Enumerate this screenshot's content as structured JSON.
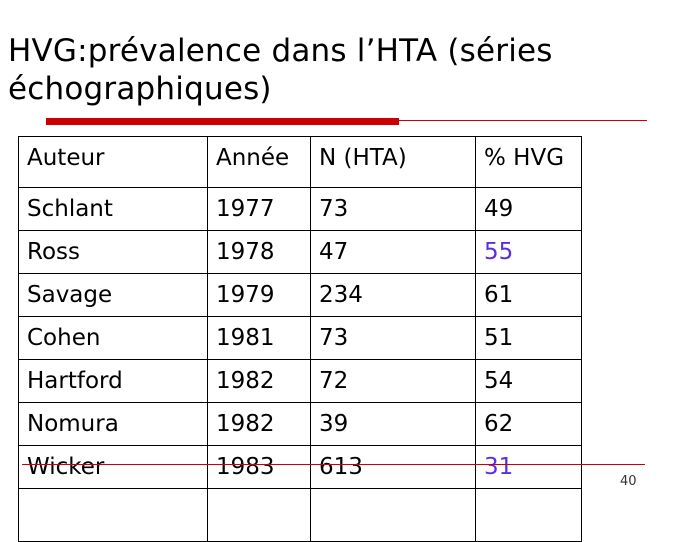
{
  "slide": {
    "title_line1": "HVG:prévalence dans l’HTA (séries",
    "title_line2": "échographiques)",
    "page_number": "40",
    "accent_color": "#cc0000",
    "highlight_color": "#5a2ee0"
  },
  "table": {
    "headers": {
      "author": "Auteur",
      "year": "Année",
      "n": "N (HTA)",
      "pct": "% HVG"
    },
    "rows": [
      {
        "author": "Schlant",
        "year": "1977",
        "n": "73",
        "pct": "49",
        "highlight": false
      },
      {
        "author": "Ross",
        "year": "1978",
        "n": "47",
        "pct": "55",
        "highlight": true
      },
      {
        "author": "Savage",
        "year": "1979",
        "n": "234",
        "pct": "61",
        "highlight": false
      },
      {
        "author": "Cohen",
        "year": "1981",
        "n": "73",
        "pct": "51",
        "highlight": false
      },
      {
        "author": "Hartford",
        "year": "1982",
        "n": "72",
        "pct": "54",
        "highlight": false
      },
      {
        "author": "Nomura",
        "year": "1982",
        "n": "39",
        "pct": "62",
        "highlight": false
      },
      {
        "author": "Wicker",
        "year": "1983",
        "n": "613",
        "pct": "31",
        "highlight": true
      }
    ]
  }
}
